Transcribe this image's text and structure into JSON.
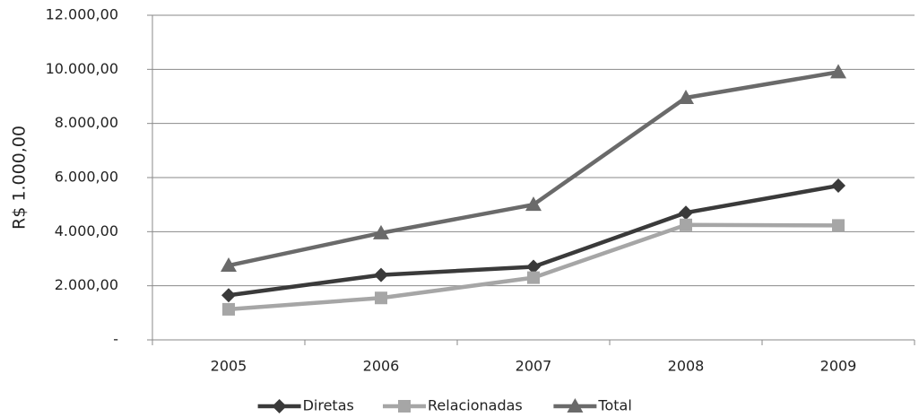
{
  "chart_data": {
    "type": "line",
    "y_label": "R$ 1.000,00",
    "categories": [
      "2005",
      "2006",
      "2007",
      "2008",
      "2009"
    ],
    "series": [
      {
        "name": "Diretas",
        "color": "#3a3a3a",
        "marker": "diamond",
        "values": [
          1650,
          2400,
          2700,
          4700,
          5700
        ]
      },
      {
        "name": "Relacionadas",
        "color": "#a6a6a6",
        "marker": "square",
        "values": [
          1130,
          1550,
          2300,
          4250,
          4230
        ]
      },
      {
        "name": "Total",
        "color": "#6a6a6a",
        "marker": "triangle",
        "values": [
          2750,
          3950,
          5000,
          8950,
          9900
        ]
      }
    ],
    "ylim": [
      0,
      12000
    ],
    "yticks": [
      {
        "value": 0,
        "label": "-"
      },
      {
        "value": 2000,
        "label": "2.000,00"
      },
      {
        "value": 4000,
        "label": "4.000,00"
      },
      {
        "value": 6000,
        "label": "6.000,00"
      },
      {
        "value": 8000,
        "label": "8.000,00"
      },
      {
        "value": 10000,
        "label": "10.000,00"
      },
      {
        "value": 12000,
        "label": "12.000,00"
      }
    ],
    "grid": true
  }
}
